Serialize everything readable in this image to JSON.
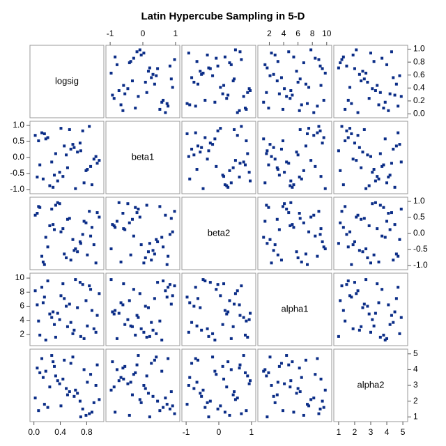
{
  "chart_data": {
    "type": "scatter-matrix",
    "title": "Latin Hypercube Sampling in 5-D",
    "color": "#0b2d87",
    "variables": [
      {
        "name": "logsig",
        "lim": [
          -0.06,
          1.06
        ],
        "xticks": [
          {
            "value": 0,
            "label": "0.0"
          },
          {
            "value": 0.4,
            "label": "0.4"
          },
          {
            "value": 0.8,
            "label": "0.8"
          }
        ],
        "yticks": [
          {
            "value": 0,
            "label": "0.0"
          },
          {
            "value": 0.2,
            "label": "0.2"
          },
          {
            "value": 0.4,
            "label": "0.4"
          },
          {
            "value": 0.6,
            "label": "0.6"
          },
          {
            "value": 0.8,
            "label": "0.8"
          },
          {
            "value": 1,
            "label": "1.0"
          }
        ],
        "values": [
          0.51,
          0.12,
          0.88,
          0.33,
          0.7,
          0.05,
          0.94,
          0.41,
          0.27,
          0.63,
          0.18,
          0.79,
          0.56,
          0.02,
          0.36,
          0.91,
          0.46,
          0.24,
          0.74,
          0.09,
          0.66,
          0.31,
          0.84,
          0.14,
          0.59,
          0.99,
          0.39,
          0.21,
          0.76,
          0.49,
          0.07,
          0.86,
          0.29,
          0.61,
          0.16,
          0.96,
          0.44,
          0.71,
          0.54,
          0.81
        ]
      },
      {
        "name": "beta1",
        "lim": [
          -1.13,
          1.13
        ],
        "xticks": [
          -1,
          0,
          1
        ],
        "yticks": [
          {
            "value": -1,
            "label": "-1.0"
          },
          {
            "value": -0.5,
            "label": "-0.5"
          },
          {
            "value": 0,
            "label": "0.0"
          },
          {
            "value": 0.5,
            "label": "0.5"
          },
          {
            "value": 1,
            "label": "1.0"
          }
        ],
        "values": [
          -0.32,
          0.77,
          -0.85,
          0.12,
          0.45,
          -0.61,
          0.03,
          0.91,
          -0.14,
          -0.97,
          0.58,
          -0.41,
          0.26,
          0.69,
          -0.73,
          -0.05,
          0.36,
          -0.88,
          0.83,
          -0.23,
          0.17,
          -0.55,
          0.97,
          -0.67,
          0.41,
          -0.09,
          -0.46,
          0.62,
          -0.79,
          0.08,
          0.52,
          -0.28,
          -0.93,
          0.31,
          0.74,
          -0.18,
          -0.59,
          0.21,
          0.87,
          -0.37
        ]
      },
      {
        "name": "beta2",
        "lim": [
          -1.13,
          1.13
        ],
        "xticks": [
          -1,
          0,
          1
        ],
        "yticks": [
          {
            "value": -1,
            "label": "-1.0"
          },
          {
            "value": -0.5,
            "label": "-0.5"
          },
          {
            "value": 0,
            "label": "0.0"
          },
          {
            "value": 0.5,
            "label": "0.5"
          },
          {
            "value": 1,
            "label": "1.0"
          }
        ],
        "values": [
          0.44,
          -0.71,
          0.19,
          0.88,
          -0.26,
          0.63,
          -0.92,
          0.05,
          0.76,
          -0.48,
          -0.12,
          0.33,
          -0.83,
          0.57,
          0.96,
          -0.35,
          -0.64,
          0.24,
          -0.03,
          0.81,
          -0.57,
          0.12,
          0.69,
          -0.89,
          -0.19,
          0.51,
          0.93,
          -0.42,
          0.38,
          -0.76,
          0.84,
          -0.08,
          0.28,
          -0.53,
          -0.97,
          0.65,
          0.15,
          -0.31,
          0.47,
          -0.67
        ]
      },
      {
        "name": "alpha1",
        "lim": [
          0.4,
          10.7
        ],
        "xticks": [
          2,
          4,
          6,
          8,
          10
        ],
        "yticks": [
          2,
          4,
          6,
          8,
          10
        ],
        "values": [
          3.1,
          8.7,
          5.4,
          1.6,
          9.4,
          6.2,
          2.3,
          7.5,
          4.4,
          9.8,
          1.2,
          6.8,
          3.7,
          8.2,
          5.0,
          2.8,
          7.1,
          4.9,
          9.1,
          1.9,
          5.8,
          3.4,
          8.9,
          6.5,
          2.1,
          7.8,
          4.1,
          9.6,
          1.4,
          6.0,
          3.9,
          8.4,
          5.2,
          2.6,
          7.3,
          4.7,
          9.2,
          1.7,
          6.3,
          3.2
        ]
      },
      {
        "name": "alpha2",
        "lim": [
          0.7,
          5.3
        ],
        "xticks": [
          1,
          2,
          3,
          4,
          5
        ],
        "yticks": [
          1,
          2,
          3,
          4,
          5
        ],
        "values": [
          2.4,
          4.7,
          1.3,
          3.6,
          2.0,
          4.1,
          3.0,
          1.7,
          4.9,
          2.7,
          3.9,
          1.1,
          4.4,
          2.2,
          3.3,
          1.9,
          4.6,
          2.9,
          1.5,
          3.8,
          2.5,
          4.2,
          1.2,
          3.5,
          4.8,
          2.1,
          3.1,
          1.6,
          4.0,
          2.8,
          1.4,
          3.7,
          4.5,
          2.3,
          1.8,
          4.3,
          3.4,
          1.0,
          2.6,
          3.2
        ]
      }
    ]
  }
}
